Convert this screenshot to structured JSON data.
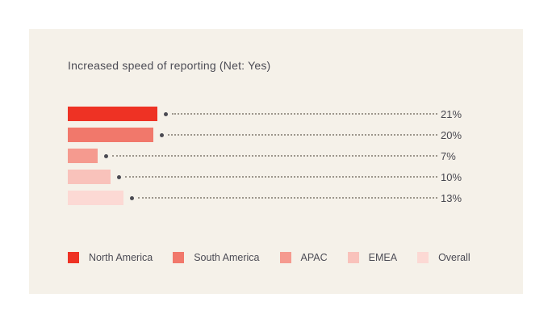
{
  "header": {
    "title": "Increased speed of reporting (Net: Yes)"
  },
  "chart_data": {
    "type": "bar",
    "orientation": "horizontal",
    "title": "Increased speed of reporting (Net: Yes)",
    "categories": [
      "North America",
      "South America",
      "APAC",
      "EMEA",
      "Overall"
    ],
    "values": [
      21,
      20,
      7,
      10,
      13
    ],
    "value_labels": [
      "21%",
      "20%",
      "7%",
      "10%",
      "13%"
    ],
    "bar_colors": [
      "#ee3224",
      "#f1786b",
      "#f59a8f",
      "#f9c2bb",
      "#fcd9d4"
    ],
    "xlim": [
      0,
      100
    ],
    "grid": false,
    "legend_position": "bottom",
    "annotations": "dotted leader line with dot marker from each bar end to its value label"
  },
  "colors": {
    "page_background": "#ffffff",
    "card_background": "#f5f1e9",
    "text": "#4c4c55",
    "value_text": "#47474f",
    "marker": "#4a4a52",
    "leader_dots": "#9c968c"
  }
}
